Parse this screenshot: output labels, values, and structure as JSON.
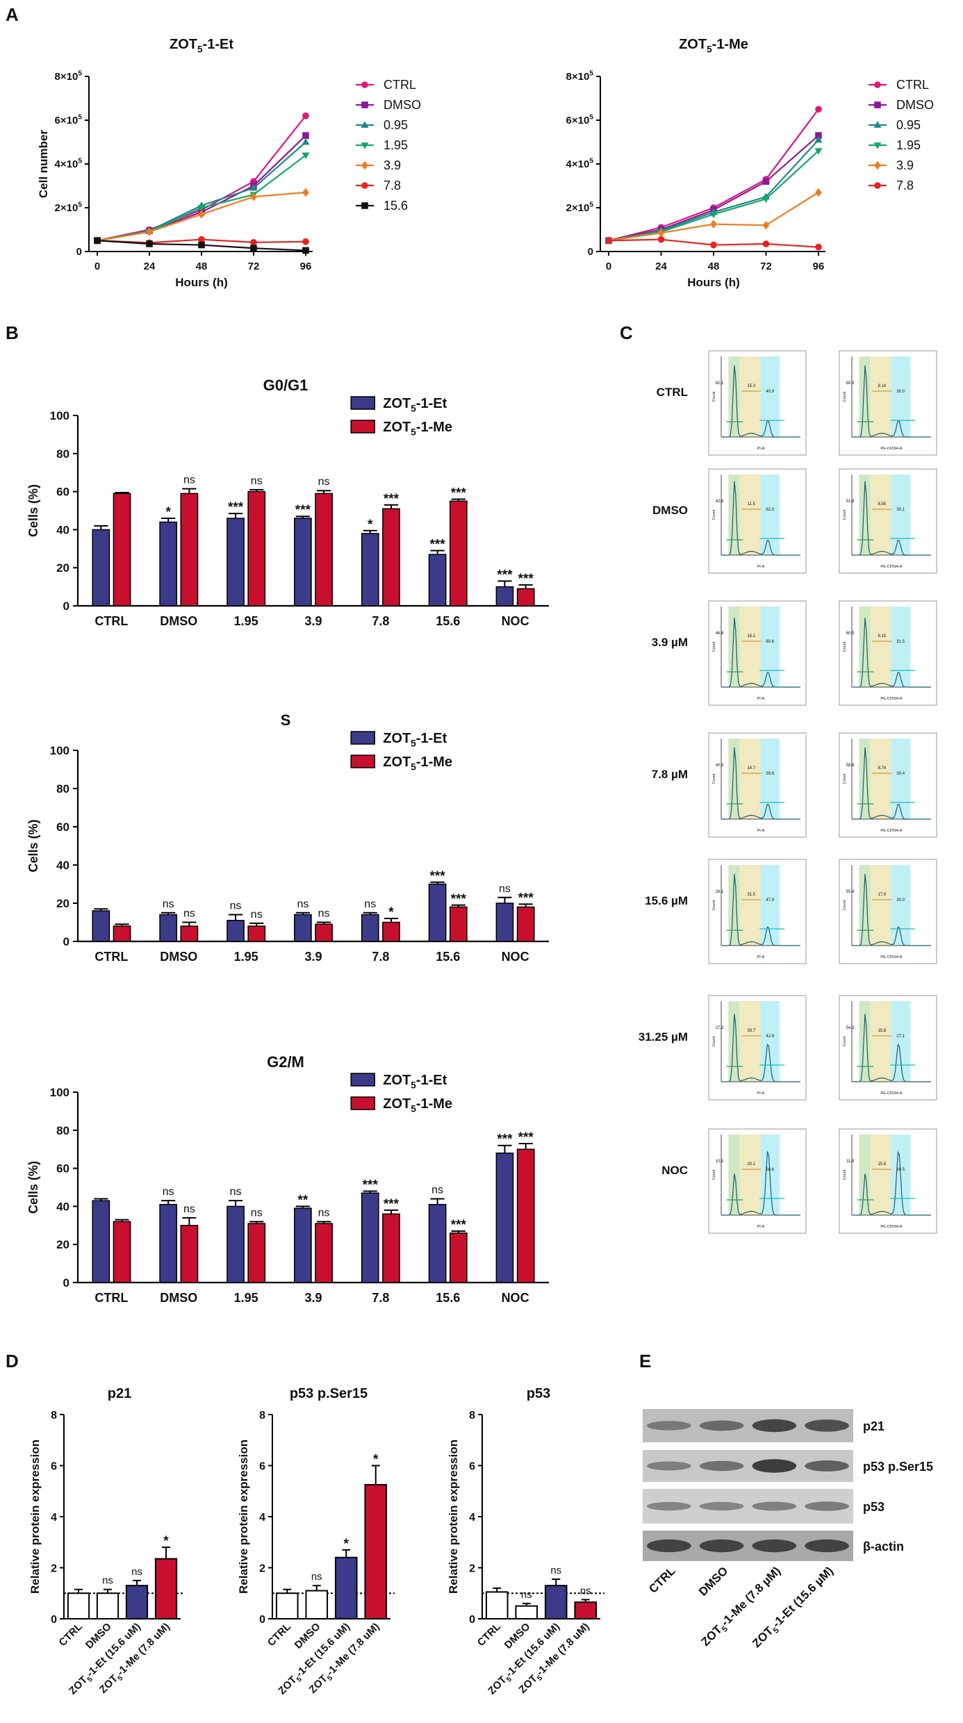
{
  "panel_labels": {
    "a": "A",
    "b": "B",
    "c": "C",
    "d": "D",
    "e": "E"
  },
  "colors": {
    "et": "#3b3b8a",
    "me": "#c8102e",
    "white_bar": "#ffffff",
    "ctrl": "#e0147a",
    "dmso": "#8a1a9a",
    "c095": "#1a8a8a",
    "c195": "#17a66b",
    "c39": "#f07b1e",
    "c78": "#e8231f",
    "c156": "#111111",
    "g1_gate": "#cfe8c4",
    "s_gate": "#f1e9bf",
    "g2_gate": "#bff0f5",
    "curve": "#1b5e6b"
  },
  "chart_data": [
    {
      "id": "A_et",
      "type": "line",
      "title_main": "ZOT",
      "title_sub": "5",
      "title_rest": "-1-Et",
      "xlabel": "Hours (h)",
      "ylabel": "Cell number",
      "ylim": [
        0,
        800000
      ],
      "x": [
        0,
        24,
        48,
        72,
        96
      ],
      "y_ticks": [
        {
          "v": 0,
          "base": "0",
          "exp": ""
        },
        {
          "v": 200000,
          "base": "2×10",
          "exp": "5"
        },
        {
          "v": 400000,
          "base": "4×10",
          "exp": "5"
        },
        {
          "v": 600000,
          "base": "6×10",
          "exp": "5"
        },
        {
          "v": 800000,
          "base": "8×10",
          "exp": "5"
        }
      ],
      "series": [
        {
          "name": "CTRL",
          "color_key": "ctrl",
          "marker": "circle",
          "values": [
            50000,
            100000,
            190000,
            320000,
            620000
          ]
        },
        {
          "name": "DMSO",
          "color_key": "dmso",
          "marker": "square",
          "values": [
            50000,
            95000,
            180000,
            300000,
            530000
          ]
        },
        {
          "name": "0.95",
          "color_key": "c095",
          "marker": "triangle",
          "values": [
            50000,
            95000,
            210000,
            290000,
            500000
          ]
        },
        {
          "name": "1.95",
          "color_key": "c195",
          "marker": "tridown",
          "values": [
            50000,
            90000,
            200000,
            260000,
            440000
          ]
        },
        {
          "name": "3.9",
          "color_key": "c39",
          "marker": "diamond",
          "values": [
            50000,
            90000,
            170000,
            250000,
            270000
          ]
        },
        {
          "name": "7.8",
          "color_key": "c78",
          "marker": "circle",
          "values": [
            50000,
            40000,
            55000,
            42000,
            45000
          ]
        },
        {
          "name": "15.6",
          "color_key": "c156",
          "marker": "square",
          "values": [
            50000,
            35000,
            30000,
            15000,
            5000
          ]
        }
      ]
    },
    {
      "id": "A_me",
      "type": "line",
      "title_main": "ZOT",
      "title_sub": "5",
      "title_rest": "-1-Me",
      "xlabel": "Hours (h)",
      "ylabel": "",
      "ylim": [
        0,
        800000
      ],
      "x": [
        0,
        24,
        48,
        72,
        96
      ],
      "y_ticks": [
        {
          "v": 0,
          "base": "0",
          "exp": ""
        },
        {
          "v": 200000,
          "base": "2×10",
          "exp": "5"
        },
        {
          "v": 400000,
          "base": "4×10",
          "exp": "5"
        },
        {
          "v": 600000,
          "base": "6×10",
          "exp": "5"
        },
        {
          "v": 800000,
          "base": "8×10",
          "exp": "5"
        }
      ],
      "series": [
        {
          "name": "CTRL",
          "color_key": "ctrl",
          "marker": "circle",
          "values": [
            50000,
            110000,
            200000,
            330000,
            650000
          ]
        },
        {
          "name": "DMSO",
          "color_key": "dmso",
          "marker": "square",
          "values": [
            50000,
            100000,
            190000,
            320000,
            530000
          ]
        },
        {
          "name": "0.95",
          "color_key": "c095",
          "marker": "triangle",
          "values": [
            50000,
            95000,
            180000,
            250000,
            510000
          ]
        },
        {
          "name": "1.95",
          "color_key": "c195",
          "marker": "tridown",
          "values": [
            50000,
            90000,
            170000,
            240000,
            460000
          ]
        },
        {
          "name": "3.9",
          "color_key": "c39",
          "marker": "diamond",
          "values": [
            50000,
            85000,
            125000,
            120000,
            270000
          ]
        },
        {
          "name": "7.8",
          "color_key": "c78",
          "marker": "circle",
          "values": [
            50000,
            55000,
            30000,
            35000,
            20000
          ]
        }
      ]
    },
    {
      "id": "B_g0g1",
      "type": "bar",
      "title": "G0/G1",
      "ylabel": "Cells (%)",
      "ylim": [
        0,
        100
      ],
      "y_ticks": [
        0,
        20,
        40,
        60,
        80,
        100
      ],
      "categories": [
        "CTRL",
        "DMSO",
        "1.95",
        "3.9",
        "7.8",
        "15.6",
        "NOC"
      ],
      "series": [
        {
          "name_main": "ZOT",
          "name_sub": "5",
          "name_rest": "-1-Et",
          "color_key": "et",
          "values": [
            40,
            44,
            46,
            46,
            38,
            27,
            10
          ],
          "errors": [
            2,
            2,
            2.5,
            1,
            1.5,
            2,
            3
          ],
          "sig": [
            "",
            "*",
            "***",
            "***",
            "*",
            "***",
            "***"
          ]
        },
        {
          "name_main": "ZOT",
          "name_sub": "5",
          "name_rest": "-1-Me",
          "color_key": "me",
          "values": [
            59,
            59,
            60,
            59,
            51,
            55,
            9
          ],
          "errors": [
            0.5,
            2.5,
            1,
            1.5,
            2,
            1,
            2
          ],
          "sig": [
            "",
            "ns",
            "ns",
            "ns",
            "***",
            "***",
            "***"
          ]
        }
      ]
    },
    {
      "id": "B_s",
      "type": "bar",
      "title": "S",
      "ylabel": "Cells (%)",
      "ylim": [
        0,
        100
      ],
      "y_ticks": [
        0,
        20,
        40,
        60,
        80,
        100
      ],
      "categories": [
        "CTRL",
        "DMSO",
        "1.95",
        "3.9",
        "7.8",
        "15.6",
        "NOC"
      ],
      "series": [
        {
          "name_main": "ZOT",
          "name_sub": "5",
          "name_rest": "-1-Et",
          "color_key": "et",
          "values": [
            16,
            14,
            11,
            14,
            14,
            30,
            20
          ],
          "errors": [
            1,
            1,
            3,
            1,
            1,
            1,
            3
          ],
          "sig": [
            "",
            "ns",
            "ns",
            "ns",
            "ns",
            "***",
            "ns"
          ]
        },
        {
          "name_main": "ZOT",
          "name_sub": "5",
          "name_rest": "-1-Me",
          "color_key": "me",
          "values": [
            8,
            8,
            8,
            9,
            10,
            18,
            18
          ],
          "errors": [
            1,
            2,
            1.5,
            1,
            2,
            1,
            1.5
          ],
          "sig": [
            "",
            "ns",
            "ns",
            "ns",
            "*",
            "***",
            "***"
          ]
        }
      ]
    },
    {
      "id": "B_g2m",
      "type": "bar",
      "title": "G2/M",
      "ylabel": "Cells (%)",
      "ylim": [
        0,
        100
      ],
      "y_ticks": [
        0,
        20,
        40,
        60,
        80,
        100
      ],
      "categories": [
        "CTRL",
        "DMSO",
        "1.95",
        "3.9",
        "7.8",
        "15.6",
        "NOC"
      ],
      "series": [
        {
          "name_main": "ZOT",
          "name_sub": "5",
          "name_rest": "-1-Et",
          "color_key": "et",
          "values": [
            43,
            41,
            40,
            39,
            47,
            41,
            68
          ],
          "errors": [
            1,
            2,
            3,
            1,
            1,
            3,
            4
          ],
          "sig": [
            "",
            "ns",
            "ns",
            "**",
            "***",
            "ns",
            "***"
          ]
        },
        {
          "name_main": "ZOT",
          "name_sub": "5",
          "name_rest": "-1-Me",
          "color_key": "me",
          "values": [
            32,
            30,
            31,
            31,
            36,
            26,
            70
          ],
          "errors": [
            1,
            4,
            1,
            1,
            2,
            1,
            3
          ],
          "sig": [
            "",
            "ns",
            "ns",
            "ns",
            "***",
            "***",
            "***"
          ]
        }
      ]
    },
    {
      "id": "D_p21",
      "type": "bar",
      "title": "p21",
      "ylabel": "Relative protein expression",
      "ylim": [
        0,
        8
      ],
      "y_ticks": [
        0,
        2,
        4,
        6,
        8
      ],
      "reference_line": 1,
      "categories": [
        "CTRL",
        "DMSO",
        "ZOT5-1-Et (15.6 uM)",
        "ZOT5-1-Me (7.8 uM)"
      ],
      "values": [
        1.0,
        1.0,
        1.3,
        2.35
      ],
      "errors": [
        0.15,
        0.15,
        0.2,
        0.45
      ],
      "sig": [
        "",
        "ns",
        "ns",
        "*"
      ],
      "color_keys": [
        "white_bar",
        "white_bar",
        "et",
        "me"
      ]
    },
    {
      "id": "D_p53ser15",
      "type": "bar",
      "title": "p53 p.Ser15",
      "ylabel": "Relative protein expression",
      "ylim": [
        0,
        8
      ],
      "y_ticks": [
        0,
        2,
        4,
        6,
        8
      ],
      "reference_line": 1,
      "categories": [
        "CTRL",
        "DMSO",
        "ZOT5-1-Et (15.6 uM)",
        "ZOT5-1-Me (7.8 uM)"
      ],
      "values": [
        1.0,
        1.1,
        2.4,
        5.25
      ],
      "errors": [
        0.15,
        0.2,
        0.3,
        0.75
      ],
      "sig": [
        "",
        "ns",
        "*",
        "*"
      ],
      "color_keys": [
        "white_bar",
        "white_bar",
        "et",
        "me"
      ]
    },
    {
      "id": "D_p53",
      "type": "bar",
      "title": "p53",
      "ylabel": "Relative protein expression",
      "ylim": [
        0,
        8
      ],
      "y_ticks": [
        0,
        2,
        4,
        6,
        8
      ],
      "reference_line": 1,
      "categories": [
        "CTRL",
        "DMSO",
        "ZOT5-1-Et (15.6 uM)",
        "ZOT5-1-Me (7.8 uM)"
      ],
      "values": [
        1.05,
        0.5,
        1.3,
        0.65
      ],
      "errors": [
        0.15,
        0.1,
        0.25,
        0.1
      ],
      "sig": [
        "",
        "ns",
        "ns",
        "ns"
      ],
      "color_keys": [
        "white_bar",
        "white_bar",
        "et",
        "me"
      ]
    }
  ],
  "flow": {
    "col_labels": [
      {
        "main": "ZOT",
        "sub": "5",
        "rest": "-1-Et"
      },
      {
        "main": "ZOT",
        "sub": "5",
        "rest": "-1-Me"
      }
    ],
    "row_labels": [
      "CTRL",
      "DMSO",
      "3.9 µM",
      "7.8 µM",
      "15.6 µM",
      "31.25 µM",
      "NOC"
    ],
    "g1_peak_rel": [
      0.95,
      0.98,
      0.92,
      0.95,
      0.95,
      0.9,
      0.55
    ],
    "g2_peak_rel": [
      0.22,
      0.2,
      0.2,
      0.2,
      0.25,
      0.5,
      0.85
    ],
    "readouts": [
      [
        [
          "62.1",
          "15.3",
          "40.9"
        ],
        [
          "60.3",
          "8.14",
          "30.0"
        ]
      ],
      [
        [
          "42.8",
          "11.5",
          "62.0"
        ],
        [
          "51.9",
          "8.55",
          "30.1"
        ]
      ],
      [
        [
          "46.8",
          "16.1",
          "60.6"
        ],
        [
          "60.5",
          "8.15",
          "31.5"
        ]
      ],
      [
        [
          "40.3",
          "14.7",
          "39.9"
        ],
        [
          "58.8",
          "8.74",
          "30.4"
        ]
      ],
      [
        [
          "26.1",
          "31.5",
          "47.9"
        ],
        [
          "55.4",
          "17.9",
          "30.0"
        ]
      ],
      [
        [
          "27.2",
          "39.7",
          "42.8"
        ],
        [
          "54.3",
          "15.8",
          "27.1"
        ]
      ],
      [
        [
          "10.5",
          "20.1",
          "66.6"
        ],
        [
          "11.8",
          "15.8",
          "60.5"
        ]
      ]
    ],
    "x_axis_labels": [
      "PI-A",
      "PE-CF594-A"
    ],
    "y_axis_label": "Count"
  },
  "western": {
    "lanes": [
      "CTRL",
      "DMSO",
      "ZOT5-1-Me (7.8 µM)",
      "ZOT5-1-Et (15.6 µM)"
    ],
    "lane_main": [
      "",
      "",
      "ZOT",
      "ZOT"
    ],
    "lane_sub": [
      "",
      "",
      "5",
      "5"
    ],
    "lane_rest": [
      "CTRL",
      "DMSO",
      "-1-Me (7.8 µM)",
      "-1-Et (15.6 µM)"
    ],
    "blots": [
      {
        "label": "p21",
        "intensity": [
          0.35,
          0.5,
          0.85,
          0.75
        ]
      },
      {
        "label": "p53 p.Ser15",
        "intensity": [
          0.3,
          0.45,
          0.95,
          0.6
        ]
      },
      {
        "label": "p53",
        "intensity": [
          0.25,
          0.25,
          0.3,
          0.35
        ]
      },
      {
        "label": "β-actin",
        "intensity": [
          0.85,
          0.85,
          0.85,
          0.85
        ]
      }
    ]
  }
}
